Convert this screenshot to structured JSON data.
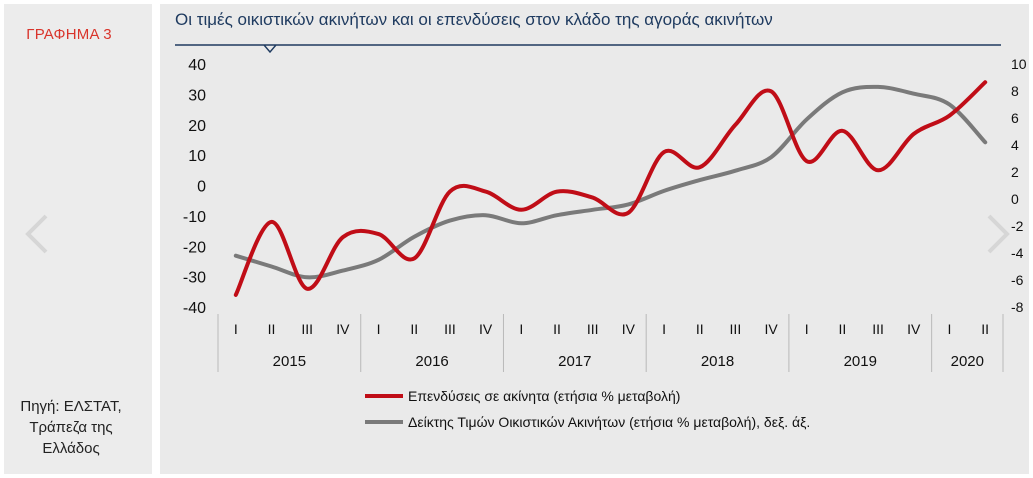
{
  "figure_label": "ΓΡΑΦΗΜΑ 3",
  "source_lines": [
    "Πηγή: ΕΛΣΤΑΤ,",
    "Τράπεζα της",
    "Ελλάδος"
  ],
  "colors": {
    "investment": "#c00d17",
    "price_index": "#7a7a7a",
    "title": "#1f3b60",
    "figure_label": "#d9342b"
  },
  "nav": {
    "prev_icon": "chevron-left-icon",
    "next_icon": "chevron-right-icon"
  },
  "chart_data": {
    "type": "line",
    "title": "Οι τιμές οικιστικών ακινήτων και οι επενδύσεις στον κλάδο της αγοράς ακινήτων",
    "quarters": [
      "I",
      "II",
      "III",
      "IV",
      "I",
      "II",
      "III",
      "IV",
      "I",
      "II",
      "III",
      "IV",
      "I",
      "II",
      "III",
      "IV",
      "I",
      "II",
      "III",
      "IV",
      "I",
      "II"
    ],
    "years": [
      {
        "label": "2015",
        "quarters": 4
      },
      {
        "label": "2016",
        "quarters": 4
      },
      {
        "label": "2017",
        "quarters": 4
      },
      {
        "label": "2018",
        "quarters": 4
      },
      {
        "label": "2019",
        "quarters": 4
      },
      {
        "label": "2020",
        "quarters": 2
      }
    ],
    "y_left": {
      "min": -40,
      "max": 40,
      "ticks": [
        40,
        30,
        20,
        10,
        0,
        -10,
        -20,
        -30,
        -40
      ]
    },
    "y_right": {
      "min": -8,
      "max": 10,
      "ticks": [
        10,
        8,
        6,
        4,
        2,
        0,
        -2,
        -4,
        -6,
        -8
      ]
    },
    "grid": false,
    "legend_position": "bottom",
    "series": [
      {
        "name": "Επενδύσεις σε ακίνητα (ετήσια % μεταβολή)",
        "axis": "left",
        "values": [
          -36,
          -12,
          -34,
          -17,
          -16,
          -24,
          -2,
          -2,
          -8,
          -2,
          -4,
          -9,
          11,
          6,
          20,
          31,
          8,
          18,
          5,
          17,
          23,
          34
        ]
      },
      {
        "name": "Δείκτης Τιμών Οικιστικών Ακινήτων (ετήσια % μεταβολή), δεξ. άξ.",
        "axis": "right",
        "values": [
          -4.2,
          -5.0,
          -5.8,
          -5.3,
          -4.5,
          -2.8,
          -1.6,
          -1.2,
          -1.8,
          -1.2,
          -0.8,
          -0.4,
          0.6,
          1.4,
          2.1,
          3.1,
          5.9,
          7.9,
          8.3,
          7.8,
          7.0,
          4.2
        ]
      }
    ]
  }
}
